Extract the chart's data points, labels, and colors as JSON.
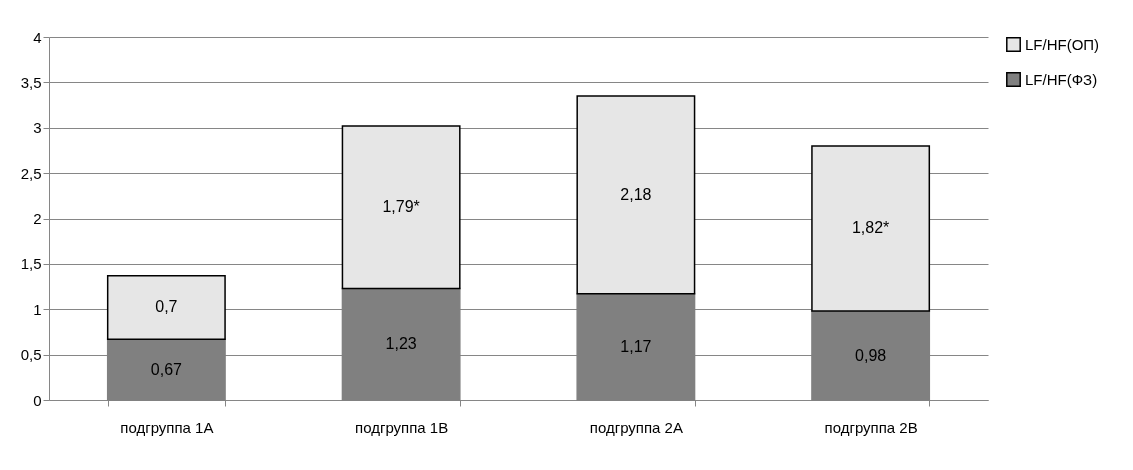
{
  "chart_data": {
    "type": "bar",
    "stacked": true,
    "categories": [
      "подгруппа 1А",
      "подгруппа 1В",
      "подгруппа 2А",
      "подгруппа 2В"
    ],
    "series": [
      {
        "name": "LF/HF(ФЗ)",
        "color": "#808080",
        "values": [
          0.67,
          1.23,
          1.17,
          0.98
        ],
        "value_labels": [
          "0,67",
          "1,23",
          "1,17",
          "0,98"
        ]
      },
      {
        "name": "LF/HF(ОП)",
        "color": "#e6e6e6",
        "values": [
          0.7,
          1.79,
          2.18,
          1.82
        ],
        "value_labels": [
          "0,7",
          "1,79*",
          "2,18",
          "1,82*"
        ]
      }
    ],
    "ylim": [
      0,
      4
    ],
    "yticks": [
      0,
      {
        "value": 0.5,
        "label": "0,5"
      },
      1,
      {
        "value": 1.5,
        "label": "1,5"
      },
      2,
      {
        "value": 2.5,
        "label": "2,5"
      },
      3,
      {
        "value": 3.5,
        "label": "3,5"
      },
      4
    ],
    "grid": "y",
    "legend": "right"
  }
}
